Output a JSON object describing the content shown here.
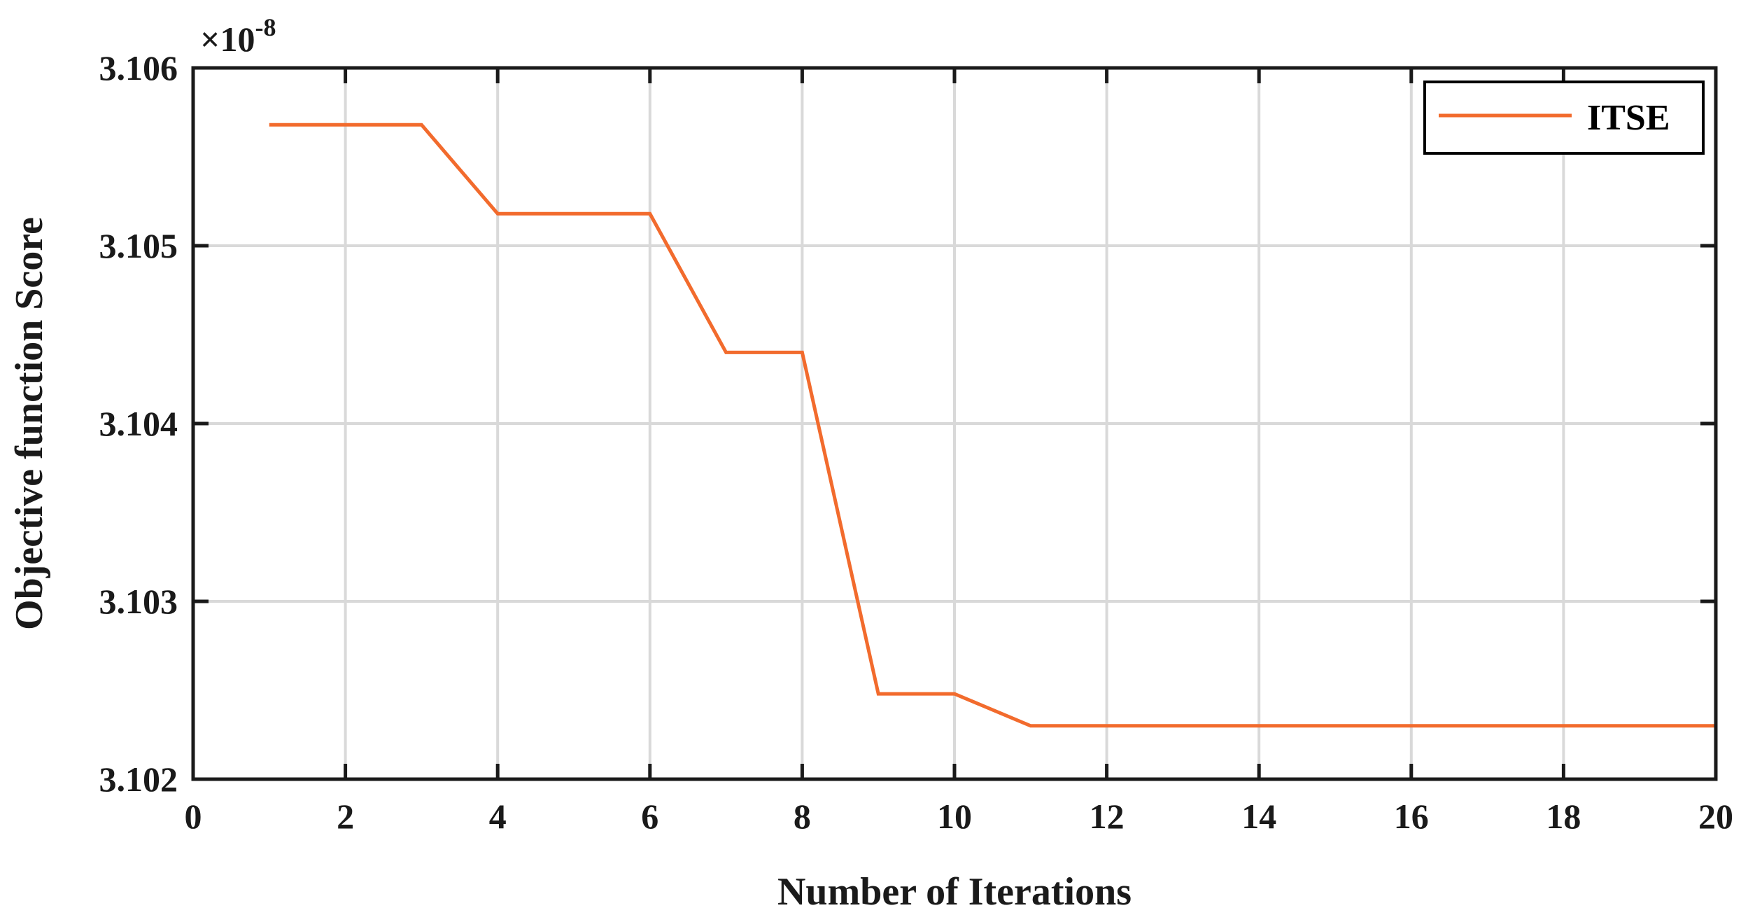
{
  "chart_data": {
    "type": "line",
    "xlabel": "Number of Iterations",
    "ylabel": "Objective function Score",
    "xlim": [
      0,
      20
    ],
    "ylim": [
      3.102,
      3.106
    ],
    "xticks": [
      0,
      2,
      4,
      6,
      8,
      10,
      12,
      14,
      16,
      18,
      20
    ],
    "yticks": [
      3.102,
      3.103,
      3.104,
      3.105,
      3.106
    ],
    "ytick_labels": [
      "3.102",
      "3.103",
      "3.104",
      "3.105",
      "3.106"
    ],
    "y_multiplier_base": "×10",
    "y_multiplier_exponent": "-8",
    "grid": true,
    "legend_position": "top-right",
    "colors": {
      "series": "#f26b2d",
      "axes": "#1a1a1a",
      "grid": "#d9d9d9"
    },
    "series": [
      {
        "name": "ITSE",
        "x": [
          1,
          2,
          3,
          4,
          5,
          6,
          7,
          8,
          9,
          10,
          11,
          12,
          13,
          14,
          15,
          16,
          17,
          18,
          19,
          20
        ],
        "values": [
          3.10568,
          3.10568,
          3.10568,
          3.10518,
          3.10518,
          3.10518,
          3.1044,
          3.1044,
          3.10248,
          3.10248,
          3.1023,
          3.1023,
          3.1023,
          3.1023,
          3.1023,
          3.1023,
          3.1023,
          3.1023,
          3.1023,
          3.1023
        ]
      }
    ]
  }
}
